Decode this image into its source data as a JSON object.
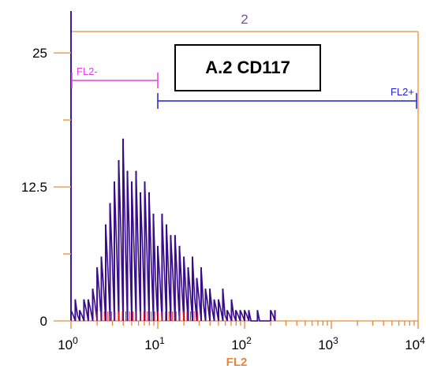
{
  "chart_data": {
    "type": "histogram",
    "title": "A.2 CD117",
    "panel_number": "2",
    "xlabel": "FL2",
    "x_scale": "log",
    "xlim": [
      1,
      10000
    ],
    "ylim": [
      0,
      27
    ],
    "y_ticks": [
      "0",
      "12.5",
      "25"
    ],
    "x_tick_labels": [
      {
        "base": "10",
        "exp": "0"
      },
      {
        "base": "10",
        "exp": "1"
      },
      {
        "base": "10",
        "exp": "2"
      },
      {
        "base": "10",
        "exp": "3"
      },
      {
        "base": "10",
        "exp": "4"
      }
    ],
    "gates": [
      {
        "label": "FL2-",
        "from": 1,
        "to": 10,
        "color": "#e040e0"
      },
      {
        "label": "FL2+",
        "from": 10,
        "to": 10000,
        "color": "#1f1fd0"
      }
    ],
    "colors": {
      "frame": "#f0a050",
      "histogram": "#3a0d8c",
      "y_axis": "#3b1a9e",
      "marker_ticks": "#ff2020",
      "x_ticks": "#e8843a"
    },
    "series": [
      {
        "x": [
          1.0,
          1.12,
          1.26,
          1.41,
          1.58,
          1.78,
          2.0,
          2.24,
          2.51,
          2.82,
          3.16,
          3.55,
          3.98,
          4.47,
          5.01,
          5.62,
          6.31,
          7.08,
          7.94,
          8.91,
          10.0,
          11.2,
          12.6,
          14.1,
          15.8,
          17.8,
          20.0,
          22.4,
          25.1,
          28.2,
          31.6,
          35.5,
          39.8,
          44.7,
          50.1,
          56.2,
          63.1,
          70.8,
          79.4,
          89.1,
          100,
          112,
          126,
          141,
          158,
          178,
          200,
          224
        ],
        "y": [
          1,
          2,
          1,
          2,
          2,
          3,
          5,
          6,
          9,
          11,
          13,
          15,
          17,
          14,
          13,
          14,
          12,
          13,
          12,
          10,
          7,
          10,
          9,
          8,
          8,
          7,
          6,
          5,
          6,
          4,
          5,
          3,
          3,
          2,
          2,
          3,
          1,
          2,
          1,
          1,
          1,
          1,
          0,
          1,
          0,
          0,
          1,
          1
        ]
      }
    ]
  }
}
